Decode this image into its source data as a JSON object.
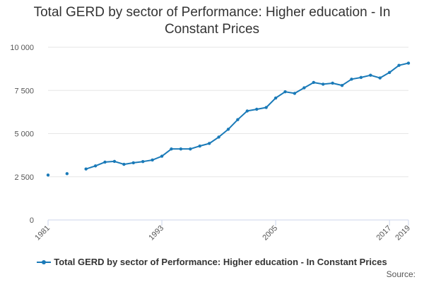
{
  "title": "Total GERD by sector of Performance: Higher education - In Constant Prices",
  "colors": {
    "series": "#1a7ab8",
    "grid": "#e6e6e6",
    "axis": "#ccd6eb"
  },
  "source_label": "Source:",
  "chart_data": {
    "type": "line",
    "title": "Total GERD by sector of Performance: Higher education - In Constant Prices",
    "xlabel": "",
    "ylabel": "",
    "xlim": [
      1981,
      2019
    ],
    "ylim": [
      0,
      10000
    ],
    "yticks": [
      0,
      2500,
      5000,
      7500,
      10000
    ],
    "ytick_labels": [
      "0",
      "2 500",
      "5 000",
      "7 500",
      "10 000"
    ],
    "xticks": [
      1981,
      1993,
      2005,
      2017,
      2019
    ],
    "grid": true,
    "legend_position": "bottom",
    "series": [
      {
        "name": "Total GERD by sector of Performance: Higher education - In Constant Prices",
        "points": [
          {
            "x": 1981,
            "y": 2600
          },
          {
            "x": 1983,
            "y": 2680
          },
          {
            "x": 1985,
            "y": 2950
          },
          {
            "x": 1986,
            "y": 3130
          },
          {
            "x": 1987,
            "y": 3350
          },
          {
            "x": 1988,
            "y": 3390
          },
          {
            "x": 1989,
            "y": 3220
          },
          {
            "x": 1990,
            "y": 3310
          },
          {
            "x": 1991,
            "y": 3380
          },
          {
            "x": 1992,
            "y": 3470
          },
          {
            "x": 1993,
            "y": 3690
          },
          {
            "x": 1994,
            "y": 4110
          },
          {
            "x": 1995,
            "y": 4110
          },
          {
            "x": 1996,
            "y": 4110
          },
          {
            "x": 1997,
            "y": 4280
          },
          {
            "x": 1998,
            "y": 4430
          },
          {
            "x": 1999,
            "y": 4800
          },
          {
            "x": 2000,
            "y": 5250
          },
          {
            "x": 2001,
            "y": 5810
          },
          {
            "x": 2002,
            "y": 6310
          },
          {
            "x": 2003,
            "y": 6410
          },
          {
            "x": 2004,
            "y": 6510
          },
          {
            "x": 2005,
            "y": 7060
          },
          {
            "x": 2006,
            "y": 7420
          },
          {
            "x": 2007,
            "y": 7330
          },
          {
            "x": 2008,
            "y": 7650
          },
          {
            "x": 2009,
            "y": 7960
          },
          {
            "x": 2010,
            "y": 7860
          },
          {
            "x": 2011,
            "y": 7920
          },
          {
            "x": 2012,
            "y": 7790
          },
          {
            "x": 2013,
            "y": 8150
          },
          {
            "x": 2014,
            "y": 8250
          },
          {
            "x": 2015,
            "y": 8380
          },
          {
            "x": 2016,
            "y": 8220
          },
          {
            "x": 2017,
            "y": 8540
          },
          {
            "x": 2018,
            "y": 8950
          },
          {
            "x": 2019,
            "y": 9080
          }
        ]
      }
    ]
  }
}
